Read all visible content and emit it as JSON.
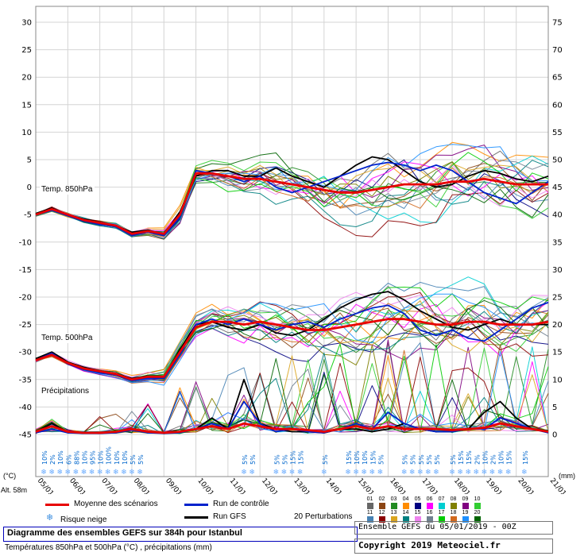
{
  "title_box": {
    "title": "Diagramme des ensembles GEFS sur 384h pour Istanbul",
    "subtitle": "Températures 850hPa et 500hPa (°C) , précipitations (mm)"
  },
  "info_box": {
    "run": "Ensemble GEFS du 05/01/2019 - 00Z",
    "copyright": "Copyright 2019 Meteociel.fr"
  },
  "legend": {
    "mean": "Moyenne des scénarios",
    "control": "Run de contrôle",
    "gfs": "Run GFS",
    "perturbations": "20 Perturbations",
    "snow": "Risque neige",
    "altitude": "Alt. 58m",
    "left_unit": "(°C)",
    "right_unit": "(mm)"
  },
  "icons": {
    "snowflake": "❄"
  },
  "chart_data": {
    "type": "line",
    "x_days": [
      0,
      0.5,
      1,
      1.5,
      2,
      2.5,
      3,
      3.5,
      4,
      4.5,
      5,
      5.5,
      6,
      6.5,
      7,
      7.5,
      8,
      8.5,
      9,
      9.5,
      10,
      10.5,
      11,
      11.5,
      12,
      12.5,
      13,
      13.5,
      14,
      14.5,
      15,
      15.5,
      16
    ],
    "x_tick_labels": [
      "05/01",
      "06/01",
      "07/01",
      "08/01",
      "09/01",
      "10/01",
      "11/01",
      "12/01",
      "13/01",
      "14/01",
      "15/01",
      "16/01",
      "17/01",
      "18/01",
      "19/01",
      "20/01",
      "21/01"
    ],
    "left_axis": {
      "unit": "(°C)",
      "min": -45,
      "max": 30,
      "step": 5,
      "ticks": [
        30,
        25,
        20,
        15,
        10,
        5,
        0,
        -5,
        -10,
        -15,
        -20,
        -25,
        -30,
        -35,
        -40,
        -45
      ]
    },
    "right_axis": {
      "unit": "(mm)",
      "min": 0,
      "max": 75,
      "step": 5,
      "ticks": [
        75,
        70,
        65,
        60,
        55,
        50,
        45,
        40,
        35,
        30,
        25,
        20,
        15,
        10,
        5,
        0
      ]
    },
    "grid": true,
    "panels": {
      "t850": {
        "label": "Temp. 850hPa",
        "mean": [
          -5,
          -4,
          -5,
          -6,
          -6.5,
          -7,
          -8.5,
          -8,
          -8.5,
          -5,
          2.5,
          2.5,
          2,
          1.5,
          1.5,
          1,
          0.5,
          0,
          -0.5,
          -1,
          -1,
          -0.5,
          0,
          0.5,
          0.5,
          0.5,
          1,
          1,
          1.5,
          1,
          0.5,
          0.5,
          0.5
        ],
        "control": [
          -5,
          -4.2,
          -5.2,
          -6.2,
          -6.8,
          -7.2,
          -8.8,
          -8.2,
          -8.8,
          -5.5,
          3,
          2.5,
          2,
          1,
          2,
          0,
          -1,
          0,
          1,
          2,
          3,
          4,
          4.5,
          4,
          3,
          4,
          3,
          1,
          -1,
          -2,
          -3,
          -1,
          1
        ],
        "gfs": [
          -4.8,
          -3.8,
          -5,
          -5.8,
          -6.4,
          -7,
          -8.2,
          -7.8,
          -8.6,
          -4.5,
          2,
          3,
          3,
          2,
          2,
          3.5,
          2,
          1,
          0,
          2,
          4,
          5.5,
          5,
          3,
          1,
          0,
          0.5,
          2,
          3,
          2.5,
          1.5,
          1,
          2
        ]
      },
      "t500": {
        "label": "Temp. 500hPa",
        "mean": [
          -31.5,
          -30.5,
          -32,
          -33,
          -33.5,
          -34,
          -35,
          -34.5,
          -34.5,
          -30,
          -25.5,
          -24.5,
          -24.5,
          -25,
          -24.5,
          -25,
          -25.5,
          -26,
          -26,
          -25.5,
          -25,
          -24.5,
          -24,
          -24,
          -24.5,
          -25,
          -25,
          -24.5,
          -24.5,
          -25,
          -25,
          -25,
          -24.5
        ],
        "control": [
          -31.5,
          -30.2,
          -32.2,
          -33.2,
          -33.8,
          -34.2,
          -35.2,
          -34.8,
          -34.8,
          -30.5,
          -25,
          -24,
          -25,
          -24,
          -25,
          -26,
          -25,
          -24.5,
          -25.5,
          -24,
          -23,
          -22,
          -21.5,
          -23,
          -26,
          -27,
          -26,
          -27.5,
          -28,
          -26,
          -24,
          -22,
          -21
        ],
        "gfs": [
          -31.2,
          -30,
          -31.8,
          -32.8,
          -33.4,
          -34,
          -34.8,
          -34.4,
          -34.6,
          -29.5,
          -25,
          -24.5,
          -25.5,
          -26,
          -25,
          -26.5,
          -27,
          -26,
          -24,
          -22,
          -20.5,
          -19.5,
          -19,
          -20.5,
          -22.5,
          -24,
          -25.5,
          -26,
          -25,
          -24,
          -25,
          -25,
          -25
        ]
      },
      "precip": {
        "label": "Précipitations",
        "mean": [
          0.5,
          1.5,
          0.5,
          0.3,
          0.3,
          0.5,
          1,
          0.5,
          0.3,
          0.5,
          1,
          1.5,
          1,
          2,
          1.5,
          1,
          1,
          0.8,
          0.5,
          1,
          1.5,
          1,
          1.5,
          1,
          1,
          1,
          0.8,
          1,
          1.2,
          2,
          1.5,
          1,
          0.5
        ],
        "control": [
          0.3,
          1,
          0.3,
          0.2,
          0.2,
          0.3,
          0.8,
          0.3,
          0.2,
          0.3,
          1,
          2,
          1,
          6,
          2,
          0.5,
          1,
          0.5,
          0.3,
          1,
          2,
          1,
          4,
          2,
          1,
          0.5,
          0.5,
          1,
          1,
          3,
          2,
          1,
          0.3
        ],
        "gfs": [
          0.5,
          2,
          0.5,
          0.2,
          0.3,
          0.5,
          1,
          0.5,
          0.3,
          0.5,
          1,
          3,
          1,
          10,
          2,
          1,
          0.5,
          0.5,
          0.3,
          1,
          1,
          0.5,
          1,
          2,
          1,
          0.5,
          0.5,
          1,
          4,
          6,
          3,
          1,
          0.5
        ]
      }
    },
    "ensemble": {
      "count": 20,
      "labels": [
        "01",
        "02",
        "03",
        "04",
        "05",
        "06",
        "07",
        "08",
        "09",
        "10",
        "11",
        "12",
        "13",
        "14",
        "15",
        "16",
        "17",
        "18",
        "19",
        "20"
      ],
      "colors": [
        "#666666",
        "#8b4513",
        "#228b22",
        "#ff8c00",
        "#000080",
        "#ff00ff",
        "#00ced1",
        "#808000",
        "#800080",
        "#32cd32",
        "#4682b4",
        "#8b0000",
        "#daa520",
        "#008080",
        "#ee82ee",
        "#708090",
        "#00cc00",
        "#d2691e",
        "#1e90ff",
        "#006400"
      ],
      "spread": {
        "t850": 4,
        "t500": 4.5,
        "precip_max": 16
      }
    },
    "snow_risk": [
      {
        "day": 0.25,
        "pct": "10%"
      },
      {
        "day": 0.5,
        "pct": "2%"
      },
      {
        "day": 0.75,
        "pct": "10%"
      },
      {
        "day": 1,
        "pct": "6%"
      },
      {
        "day": 1.25,
        "pct": "88%"
      },
      {
        "day": 1.5,
        "pct": "10%"
      },
      {
        "day": 1.75,
        "pct": "95%"
      },
      {
        "day": 2,
        "pct": "10%"
      },
      {
        "day": 2.25,
        "pct": "100%"
      },
      {
        "day": 2.5,
        "pct": "10%"
      },
      {
        "day": 2.75,
        "pct": "10%"
      },
      {
        "day": 3,
        "pct": "5%"
      },
      {
        "day": 3.25,
        "pct": "5%"
      },
      {
        "day": 6.5,
        "pct": "5%"
      },
      {
        "day": 6.75,
        "pct": "5%"
      },
      {
        "day": 7.5,
        "pct": "5%"
      },
      {
        "day": 7.75,
        "pct": "5%"
      },
      {
        "day": 8,
        "pct": "15%"
      },
      {
        "day": 8.25,
        "pct": "15%"
      },
      {
        "day": 9,
        "pct": "5%"
      },
      {
        "day": 9.75,
        "pct": "15%"
      },
      {
        "day": 10,
        "pct": "10%"
      },
      {
        "day": 10.25,
        "pct": "10%"
      },
      {
        "day": 10.5,
        "pct": "15%"
      },
      {
        "day": 10.75,
        "pct": "5%"
      },
      {
        "day": 11.5,
        "pct": "5%"
      },
      {
        "day": 11.75,
        "pct": "5%"
      },
      {
        "day": 12,
        "pct": "5%"
      },
      {
        "day": 12.25,
        "pct": "5%"
      },
      {
        "day": 12.5,
        "pct": "5%"
      },
      {
        "day": 13,
        "pct": "5%"
      },
      {
        "day": 13.25,
        "pct": "15%"
      },
      {
        "day": 13.5,
        "pct": "15%"
      },
      {
        "day": 13.75,
        "pct": "2%"
      },
      {
        "day": 14,
        "pct": "10%"
      },
      {
        "day": 14.25,
        "pct": "2%"
      },
      {
        "day": 14.5,
        "pct": "10%"
      },
      {
        "day": 14.75,
        "pct": "15%"
      },
      {
        "day": 15.25,
        "pct": "15%"
      }
    ],
    "colors": {
      "mean": "#e80000",
      "control": "#0022cc",
      "gfs": "#000000",
      "grid": "#d4d4d4",
      "border": "#888888",
      "snow_icon": "#66aaff",
      "snow_text": "#0066cc"
    }
  }
}
